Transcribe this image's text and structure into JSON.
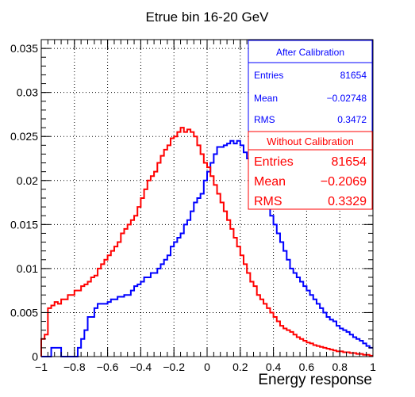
{
  "chart_data": {
    "type": "step",
    "title": "Etrue bin 16-20 GeV",
    "xlabel": "Energy response",
    "ylabel": "",
    "xlim": [
      -1,
      1
    ],
    "ylim": [
      0,
      0.036
    ],
    "bin_width": 0.02,
    "x_tick_labels": [
      "−1",
      "−0.8",
      "−0.6",
      "−0.4",
      "−0.2",
      "0",
      "0.2",
      "0.4",
      "0.6",
      "0.8",
      "1"
    ],
    "y_tick_labels": [
      "0",
      "0.005",
      "0.01",
      "0.015",
      "0.02",
      "0.025",
      "0.03",
      "0.035"
    ],
    "grid": true,
    "series": [
      {
        "name": "After Calibration",
        "color": "#0000ff",
        "values": [
          0,
          0,
          0,
          0.001,
          0.001,
          0.001,
          0,
          0,
          0,
          0,
          0,
          0.001,
          0.002,
          0.003,
          0.0045,
          0.0045,
          0.0055,
          0.006,
          0.006,
          0.006,
          0.0062,
          0.0065,
          0.0065,
          0.0068,
          0.0068,
          0.007,
          0.007,
          0.0075,
          0.008,
          0.0082,
          0.0085,
          0.009,
          0.009,
          0.0095,
          0.0095,
          0.01,
          0.0105,
          0.011,
          0.0115,
          0.0125,
          0.013,
          0.0135,
          0.014,
          0.015,
          0.0155,
          0.0165,
          0.0175,
          0.018,
          0.0185,
          0.02,
          0.021,
          0.022,
          0.023,
          0.0238,
          0.0238,
          0.024,
          0.0242,
          0.0245,
          0.0242,
          0.0245,
          0.024,
          0.0232,
          0.0225,
          0.0215,
          0.021,
          0.02,
          0.019,
          0.018,
          0.017,
          0.016,
          0.015,
          0.014,
          0.013,
          0.012,
          0.011,
          0.01,
          0.0095,
          0.009,
          0.0085,
          0.008,
          0.0075,
          0.007,
          0.0065,
          0.006,
          0.0055,
          0.005,
          0.0045,
          0.0042,
          0.004,
          0.0035,
          0.0032,
          0.003,
          0.0028,
          0.0025,
          0.0022,
          0.002,
          0.0018,
          0.0015,
          0.0012,
          0.001
        ]
      },
      {
        "name": "Without Calibration",
        "color": "#ff0000",
        "values": [
          0.002,
          0.0025,
          0.0055,
          0.0058,
          0.0062,
          0.006,
          0.0065,
          0.0065,
          0.007,
          0.007,
          0.0075,
          0.0075,
          0.008,
          0.0082,
          0.0085,
          0.009,
          0.0092,
          0.01,
          0.0105,
          0.011,
          0.0115,
          0.012,
          0.0125,
          0.013,
          0.014,
          0.0145,
          0.015,
          0.0155,
          0.016,
          0.017,
          0.018,
          0.019,
          0.02,
          0.0205,
          0.021,
          0.022,
          0.0228,
          0.0235,
          0.024,
          0.0248,
          0.025,
          0.0255,
          0.026,
          0.0255,
          0.0258,
          0.0255,
          0.025,
          0.024,
          0.023,
          0.022,
          0.0215,
          0.0205,
          0.0195,
          0.0185,
          0.0175,
          0.0165,
          0.0155,
          0.0145,
          0.0135,
          0.0125,
          0.0115,
          0.0105,
          0.0095,
          0.0085,
          0.008,
          0.007,
          0.0065,
          0.006,
          0.0055,
          0.005,
          0.0045,
          0.004,
          0.0035,
          0.0032,
          0.003,
          0.0028,
          0.0025,
          0.0022,
          0.002,
          0.0018,
          0.0016,
          0.0015,
          0.0013,
          0.0012,
          0.0011,
          0.001,
          0.0009,
          0.0008,
          0.0007,
          0.0006,
          0.0006,
          0.0005,
          0.0005,
          0.0004,
          0.0004,
          0.0003,
          0.0003,
          0.0002,
          0.0002,
          0.0001
        ]
      }
    ],
    "stats_boxes": [
      {
        "title": "After Calibration",
        "color": "#0000ff",
        "rows": [
          {
            "label": "Entries",
            "value": "81654"
          },
          {
            "label": "Mean",
            "value": "−0.02748"
          },
          {
            "label": "RMS",
            "value": "0.3472"
          }
        ]
      },
      {
        "title": "Without Calibration",
        "color": "#ff0000",
        "rows": [
          {
            "label": "Entries",
            "value": "81654"
          },
          {
            "label": "Mean",
            "value": "−0.2069"
          },
          {
            "label": "RMS",
            "value": "0.3329"
          }
        ]
      }
    ]
  }
}
